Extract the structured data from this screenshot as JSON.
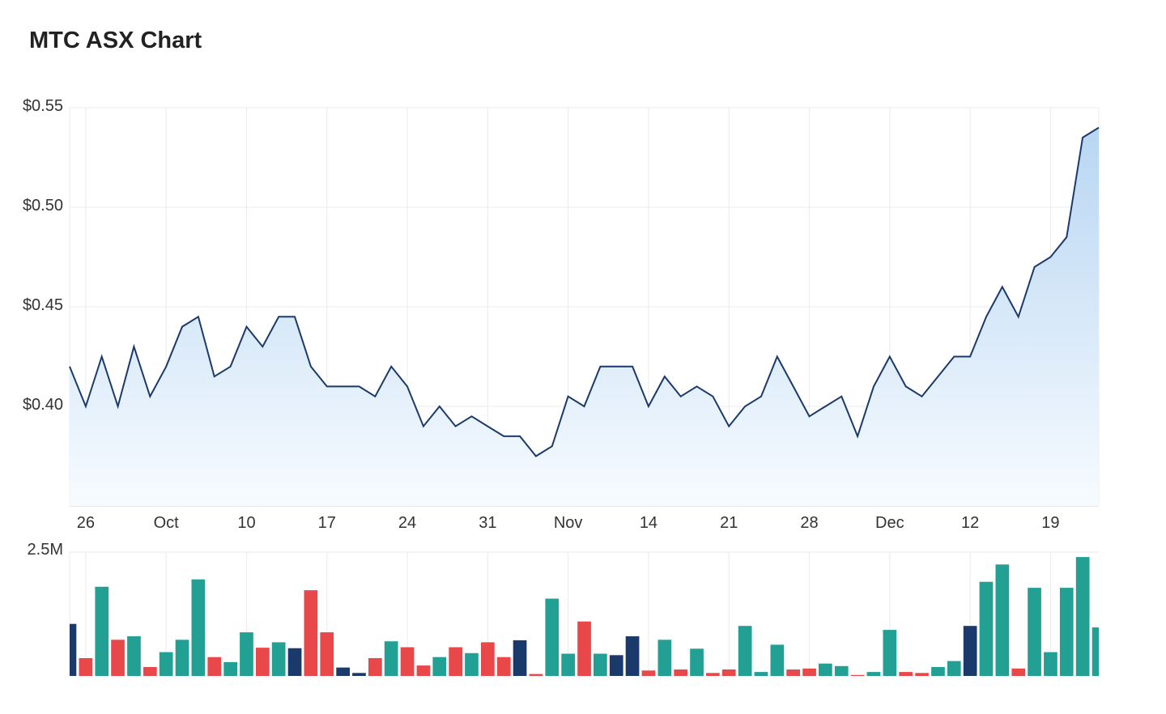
{
  "page": {
    "title": "MTC ASX Chart"
  },
  "chart_data": {
    "type": "line",
    "title": "MTC ASX Chart",
    "price_axis": {
      "ylim": [
        0.35,
        0.55
      ],
      "ticks": [
        {
          "value": 0.55,
          "label": "$0.55"
        },
        {
          "value": 0.5,
          "label": "$0.50"
        },
        {
          "value": 0.45,
          "label": "$0.45"
        },
        {
          "value": 0.4,
          "label": "$0.40"
        }
      ]
    },
    "x_ticks": [
      {
        "index": 1,
        "label": "26"
      },
      {
        "index": 6,
        "label": "Oct"
      },
      {
        "index": 11,
        "label": "10"
      },
      {
        "index": 16,
        "label": "17"
      },
      {
        "index": 21,
        "label": "24"
      },
      {
        "index": 26,
        "label": "31"
      },
      {
        "index": 31,
        "label": "Nov"
      },
      {
        "index": 36,
        "label": "14"
      },
      {
        "index": 41,
        "label": "21"
      },
      {
        "index": 46,
        "label": "28"
      },
      {
        "index": 51,
        "label": "Dec"
      },
      {
        "index": 56,
        "label": "12"
      },
      {
        "index": 61,
        "label": "19"
      }
    ],
    "price": [
      0.42,
      0.4,
      0.425,
      0.4,
      0.43,
      0.405,
      0.42,
      0.44,
      0.445,
      0.415,
      0.42,
      0.44,
      0.43,
      0.445,
      0.445,
      0.42,
      0.41,
      0.41,
      0.41,
      0.405,
      0.42,
      0.41,
      0.39,
      0.4,
      0.39,
      0.395,
      0.39,
      0.385,
      0.385,
      0.375,
      0.38,
      0.405,
      0.4,
      0.42,
      0.42,
      0.42,
      0.4,
      0.415,
      0.405,
      0.41,
      0.405,
      0.39,
      0.4,
      0.405,
      0.425,
      0.41,
      0.395,
      0.4,
      0.405,
      0.385,
      0.41,
      0.425,
      0.41,
      0.405,
      0.415,
      0.425,
      0.425,
      0.445,
      0.46,
      0.445,
      0.47,
      0.475,
      0.485,
      0.535,
      0.54
    ],
    "volume_axis": {
      "ylim": [
        0,
        2.5
      ],
      "ticks": [
        {
          "value": 2.5,
          "label": "2.5M"
        }
      ]
    },
    "volume_millions": [
      1.05,
      0.36,
      1.8,
      0.73,
      0.8,
      0.18,
      0.48,
      0.73,
      1.95,
      0.38,
      0.28,
      0.88,
      0.57,
      0.68,
      0.56,
      1.73,
      0.88,
      0.17,
      0.06,
      0.36,
      0.7,
      0.58,
      0.21,
      0.38,
      0.58,
      0.46,
      0.68,
      0.38,
      0.72,
      0.04,
      1.56,
      0.45,
      1.1,
      0.45,
      0.42,
      0.8,
      0.11,
      0.73,
      0.13,
      0.55,
      0.06,
      0.13,
      1.01,
      0.08,
      0.63,
      0.13,
      0.15,
      0.25,
      0.2,
      0.02,
      0.08,
      0.93,
      0.08,
      0.06,
      0.18,
      0.3,
      1.01,
      1.9,
      2.25,
      0.15,
      1.78,
      0.48,
      1.78,
      2.4,
      0.98
    ],
    "volume_colors": [
      "navy",
      "red",
      "teal",
      "red",
      "teal",
      "red",
      "teal",
      "teal",
      "teal",
      "red",
      "teal",
      "teal",
      "red",
      "teal",
      "navy",
      "red",
      "red",
      "navy",
      "navy",
      "red",
      "teal",
      "red",
      "red",
      "teal",
      "red",
      "teal",
      "red",
      "red",
      "navy",
      "red",
      "teal",
      "teal",
      "red",
      "teal",
      "navy",
      "navy",
      "red",
      "teal",
      "red",
      "teal",
      "red",
      "red",
      "teal",
      "teal",
      "teal",
      "red",
      "red",
      "teal",
      "teal",
      "red",
      "teal",
      "teal",
      "red",
      "red",
      "teal",
      "teal",
      "navy",
      "teal",
      "teal",
      "red",
      "teal",
      "teal",
      "teal",
      "teal",
      "teal"
    ],
    "colors": {
      "line": "#1b3a6b",
      "area_top": "#b8d6f2",
      "area_bottom": "#f7fbff",
      "up": "#22a094",
      "down": "#e8484a",
      "neutral": "#1a3a6c",
      "grid": "#ebebeb"
    },
    "grid": true,
    "legend": "none"
  }
}
